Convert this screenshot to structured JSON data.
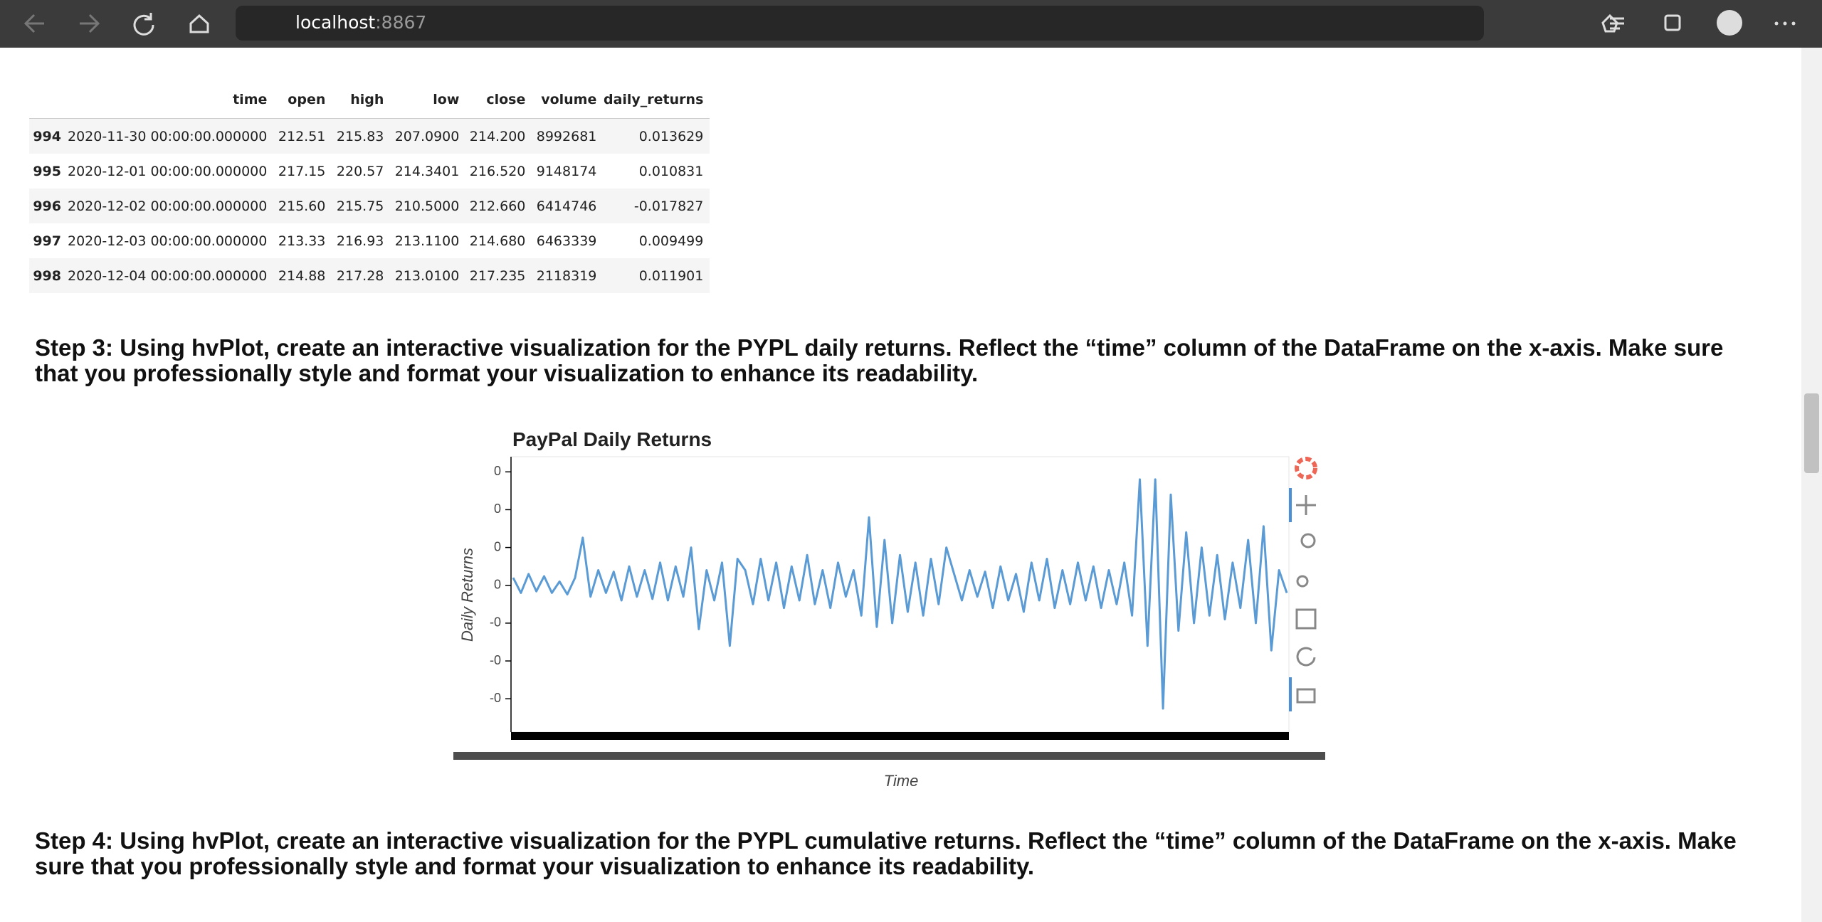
{
  "browser": {
    "host": "localhost",
    "port": ":8867"
  },
  "table": {
    "columns": [
      "time",
      "open",
      "high",
      "low",
      "close",
      "volume",
      "daily_returns"
    ],
    "rows": [
      [
        "994",
        "2020-11-30 00:00:00.000000",
        "212.51",
        "215.83",
        "207.0900",
        "214.200",
        "8992681",
        "0.013629"
      ],
      [
        "995",
        "2020-12-01 00:00:00.000000",
        "217.15",
        "220.57",
        "214.3401",
        "216.520",
        "9148174",
        "0.010831"
      ],
      [
        "996",
        "2020-12-02 00:00:00.000000",
        "215.60",
        "215.75",
        "210.5000",
        "212.660",
        "6414746",
        "-0.017827"
      ],
      [
        "997",
        "2020-12-03 00:00:00.000000",
        "213.33",
        "216.93",
        "213.1100",
        "214.680",
        "6463339",
        "0.009499"
      ],
      [
        "998",
        "2020-12-04 00:00:00.000000",
        "214.88",
        "217.28",
        "213.0100",
        "217.235",
        "2118319",
        "0.011901"
      ]
    ]
  },
  "step3": "Step 3: Using hvPlot, create an interactive visualization for the PYPL daily returns. Reflect the “time” column of the DataFrame on the x-axis. Make sure that you professionally style and format your visualization to enhance its readability.",
  "step4": "Step 4: Using hvPlot, create an interactive visualization for the PYPL cumulative returns. Reflect the “time” column of the DataFrame on the x-axis. Make sure that you professionally style and format your visualization to enhance its readability.",
  "chart_data": {
    "type": "line",
    "title": "PayPal Daily Returns",
    "x_label": "Time",
    "y_label": "Daily Returns",
    "color": "#5b9bd5",
    "ylim": [
      -0.194,
      0.17
    ],
    "yticks": [
      {
        "value": 0.15,
        "label": "0"
      },
      {
        "value": 0.1,
        "label": "0"
      },
      {
        "value": 0.05,
        "label": "0"
      },
      {
        "value": 0,
        "label": "0"
      },
      {
        "value": -0.05,
        "label": "-0"
      },
      {
        "value": -0.1,
        "label": "-0"
      },
      {
        "value": -0.15,
        "label": "-0"
      }
    ],
    "values": [
      0.01,
      -0.01,
      0.015,
      -0.008,
      0.012,
      -0.01,
      0.005,
      -0.012,
      0.01,
      0.063,
      -0.015,
      0.02,
      -0.01,
      0.018,
      -0.02,
      0.025,
      -0.015,
      0.02,
      -0.018,
      0.03,
      -0.02,
      0.025,
      -0.015,
      0.05,
      -0.058,
      0.02,
      -0.02,
      0.03,
      -0.08,
      0.035,
      0.02,
      -0.025,
      0.035,
      -0.02,
      0.03,
      -0.03,
      0.025,
      -0.02,
      0.04,
      -0.025,
      0.02,
      -0.03,
      0.03,
      -0.015,
      0.02,
      -0.04,
      0.09,
      -0.055,
      0.06,
      -0.05,
      0.04,
      -0.035,
      0.03,
      -0.04,
      0.035,
      -0.025,
      0.05,
      0.015,
      -0.02,
      0.02,
      -0.015,
      0.018,
      -0.03,
      0.025,
      -0.02,
      0.015,
      -0.035,
      0.03,
      -0.02,
      0.035,
      -0.03,
      0.02,
      -0.025,
      0.03,
      -0.02,
      0.025,
      -0.03,
      0.02,
      -0.025,
      0.03,
      -0.04,
      0.14,
      -0.08,
      0.14,
      -0.163,
      0.12,
      -0.06,
      0.07,
      -0.05,
      0.05,
      -0.04,
      0.04,
      -0.045,
      0.03,
      -0.03,
      0.06,
      -0.05,
      0.078,
      -0.086,
      0.02,
      -0.01
    ]
  }
}
